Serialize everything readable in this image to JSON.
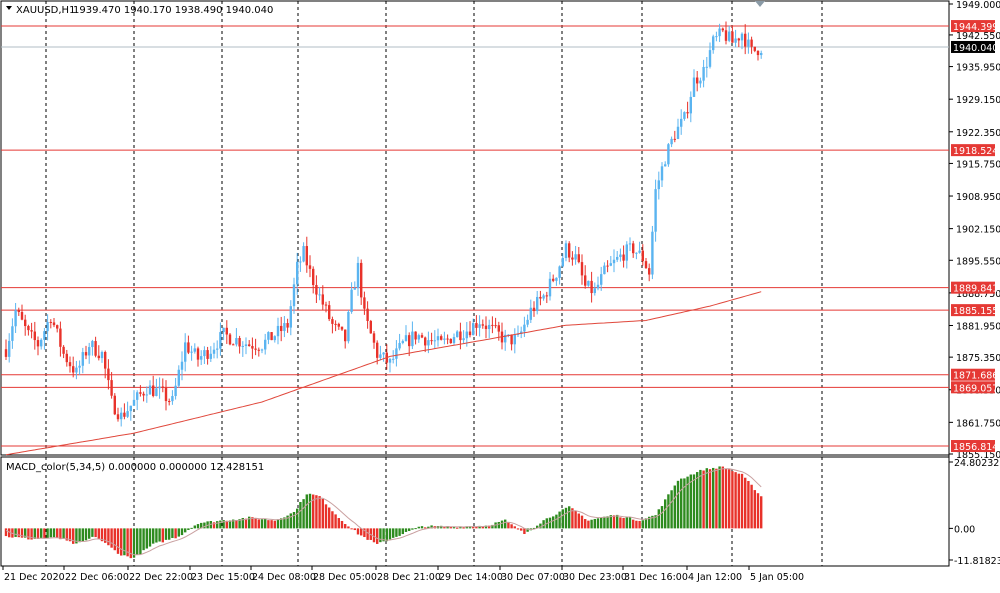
{
  "window": {
    "symbol_title": "XAUUSD,H1",
    "ohlc_text": "1939.470 1940.170 1938.490 1940.040"
  },
  "colors": {
    "bull": "#5ab4f0",
    "bear": "#e8322a",
    "ma": "#e0473b",
    "level_line": "#e53935",
    "price_line": "#b0bec5",
    "grid": "#000000",
    "macd_up": "#2e8b1f",
    "macd_down": "#e8322a",
    "signal": "#c9a0a0"
  },
  "chart_data": [
    {
      "type": "candlestick",
      "title": "XAUUSD,H1",
      "ylim": [
        1855.15,
        1949.0
      ],
      "y_ticks": [
        "1949.000",
        "1942.550",
        "1935.950",
        "1929.150",
        "1922.350",
        "1915.750",
        "1908.950",
        "1902.150",
        "1895.550",
        "1888.750",
        "1881.950",
        "1875.350",
        "1868.550",
        "1861.750",
        "1855.150"
      ],
      "x_ticks": [
        "21 Dec 2020",
        "22 Dec 06:00",
        "22 Dec 22:00",
        "23 Dec 15:00",
        "24 Dec 08:00",
        "28 Dec 05:00",
        "28 Dec 21:00",
        "29 Dec 14:00",
        "30 Dec 07:00",
        "30 Dec 23:00",
        "31 Dec 16:00",
        "4 Jan 12:00",
        "5 Jan 05:00"
      ],
      "current_price": "1940.040",
      "levels": [
        "1944.399",
        "1918.524",
        "1889.841",
        "1885.155",
        "1871.686",
        "1869.057",
        "1856.814"
      ],
      "close_path": [
        {
          "i": 0,
          "c": 1877
        },
        {
          "i": 3,
          "c": 1885
        },
        {
          "i": 7,
          "c": 1880
        },
        {
          "i": 10,
          "c": 1878
        },
        {
          "i": 14,
          "c": 1884
        },
        {
          "i": 18,
          "c": 1876
        },
        {
          "i": 22,
          "c": 1872
        },
        {
          "i": 26,
          "c": 1878
        },
        {
          "i": 30,
          "c": 1876
        },
        {
          "i": 33,
          "c": 1866
        },
        {
          "i": 36,
          "c": 1863
        },
        {
          "i": 40,
          "c": 1866
        },
        {
          "i": 44,
          "c": 1869
        },
        {
          "i": 48,
          "c": 1868
        },
        {
          "i": 52,
          "c": 1866
        },
        {
          "i": 56,
          "c": 1878
        },
        {
          "i": 60,
          "c": 1875
        },
        {
          "i": 64,
          "c": 1877
        },
        {
          "i": 68,
          "c": 1880
        },
        {
          "i": 72,
          "c": 1879
        },
        {
          "i": 76,
          "c": 1878
        },
        {
          "i": 80,
          "c": 1878
        },
        {
          "i": 84,
          "c": 1880
        },
        {
          "i": 88,
          "c": 1882
        },
        {
          "i": 91,
          "c": 1894
        },
        {
          "i": 93,
          "c": 1897
        },
        {
          "i": 95,
          "c": 1893
        },
        {
          "i": 98,
          "c": 1888
        },
        {
          "i": 102,
          "c": 1882
        },
        {
          "i": 106,
          "c": 1879
        },
        {
          "i": 108,
          "c": 1888
        },
        {
          "i": 110,
          "c": 1894
        },
        {
          "i": 112,
          "c": 1884
        },
        {
          "i": 116,
          "c": 1876
        },
        {
          "i": 120,
          "c": 1874
        },
        {
          "i": 124,
          "c": 1878
        },
        {
          "i": 128,
          "c": 1880
        },
        {
          "i": 132,
          "c": 1879
        },
        {
          "i": 136,
          "c": 1878
        },
        {
          "i": 140,
          "c": 1880
        },
        {
          "i": 144,
          "c": 1881
        },
        {
          "i": 148,
          "c": 1883
        },
        {
          "i": 152,
          "c": 1881
        },
        {
          "i": 156,
          "c": 1879
        },
        {
          "i": 160,
          "c": 1879
        },
        {
          "i": 164,
          "c": 1885
        },
        {
          "i": 168,
          "c": 1888
        },
        {
          "i": 172,
          "c": 1893
        },
        {
          "i": 175,
          "c": 1898
        },
        {
          "i": 178,
          "c": 1896
        },
        {
          "i": 181,
          "c": 1890
        },
        {
          "i": 184,
          "c": 1889
        },
        {
          "i": 187,
          "c": 1893
        },
        {
          "i": 190,
          "c": 1895
        },
        {
          "i": 193,
          "c": 1897
        },
        {
          "i": 196,
          "c": 1898
        },
        {
          "i": 199,
          "c": 1896
        },
        {
          "i": 201,
          "c": 1893
        },
        {
          "i": 203,
          "c": 1910
        },
        {
          "i": 206,
          "c": 1917
        },
        {
          "i": 209,
          "c": 1922
        },
        {
          "i": 212,
          "c": 1925
        },
        {
          "i": 215,
          "c": 1933
        },
        {
          "i": 218,
          "c": 1935
        },
        {
          "i": 221,
          "c": 1941
        },
        {
          "i": 224,
          "c": 1943
        },
        {
          "i": 227,
          "c": 1941
        },
        {
          "i": 230,
          "c": 1943
        },
        {
          "i": 233,
          "c": 1939
        },
        {
          "i": 236,
          "c": 1940
        }
      ],
      "ma_path": [
        {
          "i": 0,
          "v": 1855.0
        },
        {
          "i": 40,
          "v": 1859.5
        },
        {
          "i": 80,
          "v": 1866.0
        },
        {
          "i": 120,
          "v": 1875.5
        },
        {
          "i": 150,
          "v": 1879.0
        },
        {
          "i": 175,
          "v": 1882.0
        },
        {
          "i": 200,
          "v": 1883.0
        },
        {
          "i": 220,
          "v": 1886.0
        },
        {
          "i": 236,
          "v": 1889.0
        }
      ]
    },
    {
      "type": "bar",
      "title": "MACD_color(5,34,5) 0.000000 0.000000 12.428151",
      "ylim": [
        -11.818234,
        24.802325
      ],
      "y_ticks": [
        "24.802325",
        "0.00",
        "-11.818234"
      ],
      "macd_path": [
        {
          "i": 0,
          "v": -3
        },
        {
          "i": 8,
          "v": -4
        },
        {
          "i": 16,
          "v": -3.5
        },
        {
          "i": 22,
          "v": -6
        },
        {
          "i": 28,
          "v": -3
        },
        {
          "i": 36,
          "v": -10
        },
        {
          "i": 40,
          "v": -11
        },
        {
          "i": 46,
          "v": -6
        },
        {
          "i": 54,
          "v": -3
        },
        {
          "i": 60,
          "v": 2
        },
        {
          "i": 68,
          "v": 3
        },
        {
          "i": 76,
          "v": 4
        },
        {
          "i": 84,
          "v": 3
        },
        {
          "i": 90,
          "v": 6
        },
        {
          "i": 94,
          "v": 13
        },
        {
          "i": 98,
          "v": 12
        },
        {
          "i": 104,
          "v": 4
        },
        {
          "i": 110,
          "v": -2
        },
        {
          "i": 116,
          "v": -6
        },
        {
          "i": 122,
          "v": -3
        },
        {
          "i": 130,
          "v": 0.8
        },
        {
          "i": 140,
          "v": 0.6
        },
        {
          "i": 150,
          "v": 1
        },
        {
          "i": 156,
          "v": 3
        },
        {
          "i": 162,
          "v": -2
        },
        {
          "i": 168,
          "v": 3
        },
        {
          "i": 176,
          "v": 8
        },
        {
          "i": 182,
          "v": 3
        },
        {
          "i": 190,
          "v": 5
        },
        {
          "i": 198,
          "v": 3
        },
        {
          "i": 203,
          "v": 5
        },
        {
          "i": 210,
          "v": 18
        },
        {
          "i": 218,
          "v": 22
        },
        {
          "i": 224,
          "v": 23
        },
        {
          "i": 230,
          "v": 20
        },
        {
          "i": 236,
          "v": 12
        }
      ]
    }
  ]
}
